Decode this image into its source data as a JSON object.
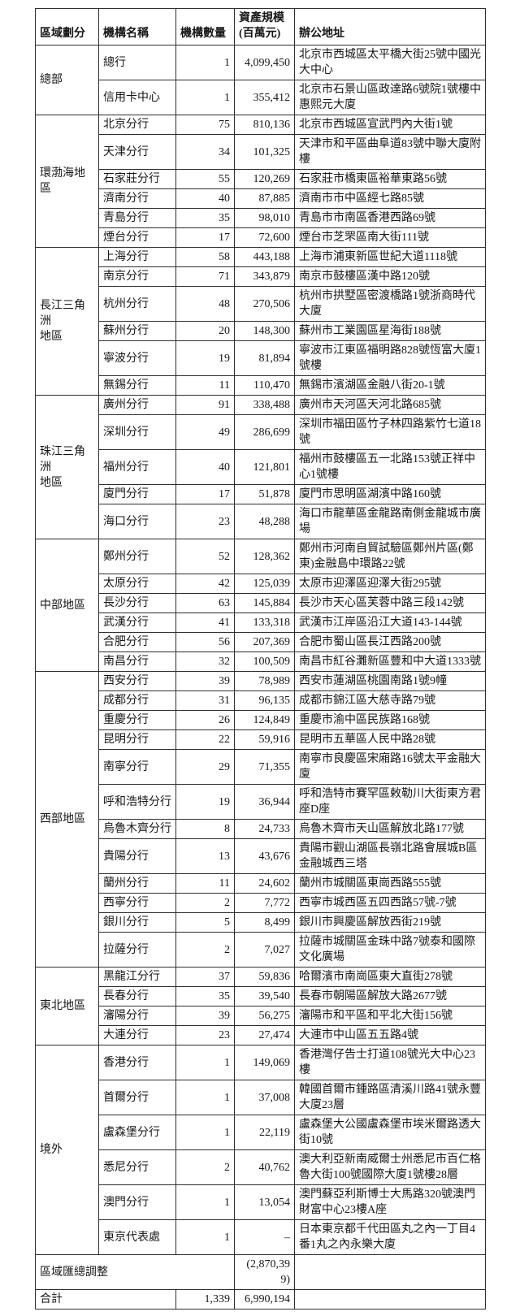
{
  "colors": {
    "background": "#ffffff",
    "text": "#161616",
    "border": "#2e2e2e"
  },
  "table": {
    "headers": {
      "region": "區域劃分",
      "name": "機構名稱",
      "count": "機構數量",
      "asset": "資產規模\n(百萬元)",
      "address": "辦公地址"
    },
    "groups": [
      {
        "region": "總部",
        "rows": [
          {
            "name": "總行",
            "count": "1",
            "asset": "4,099,450",
            "address": "北京市西城區太平橋大街25號中國光大中心"
          },
          {
            "name": "信用卡中心",
            "count": "1",
            "asset": "355,412",
            "address": "北京市石景山區政達路6號院1號樓中惠熙元大廈"
          }
        ]
      },
      {
        "region": "環渤海地區",
        "rows": [
          {
            "name": "北京分行",
            "count": "75",
            "asset": "810,136",
            "address": "北京市西城區宣武門內大街1號"
          },
          {
            "name": "天津分行",
            "count": "34",
            "asset": "101,325",
            "address": "天津市和平區曲阜道83號中聯大廈附樓"
          },
          {
            "name": "石家莊分行",
            "count": "55",
            "asset": "120,269",
            "address": "石家莊市橋東區裕華東路56號"
          },
          {
            "name": "濟南分行",
            "count": "40",
            "asset": "87,885",
            "address": "濟南市市中區經七路85號"
          },
          {
            "name": "青島分行",
            "count": "35",
            "asset": "98,010",
            "address": "青島市市南區香港西路69號"
          },
          {
            "name": "煙台分行",
            "count": "17",
            "asset": "72,600",
            "address": "煙台市芝罘區南大街111號"
          }
        ]
      },
      {
        "region": "長江三角洲\n地區",
        "rows": [
          {
            "name": "上海分行",
            "count": "58",
            "asset": "443,188",
            "address": "上海市浦東新區世紀大道1118號"
          },
          {
            "name": "南京分行",
            "count": "71",
            "asset": "343,879",
            "address": "南京市鼓樓區漢中路120號"
          },
          {
            "name": "杭州分行",
            "count": "48",
            "asset": "270,506",
            "address": "杭州市拱墅區密渡橋路1號浙商時代大廈"
          },
          {
            "name": "蘇州分行",
            "count": "20",
            "asset": "148,300",
            "address": "蘇州市工業園區星海街188號"
          },
          {
            "name": "寧波分行",
            "count": "19",
            "asset": "81,894",
            "address": "寧波市江東區福明路828號恆富大廈1號樓"
          },
          {
            "name": "無錫分行",
            "count": "11",
            "asset": "110,470",
            "address": "無錫市濱湖區金融八街20-1號"
          }
        ]
      },
      {
        "region": "珠江三角洲\n地區",
        "rows": [
          {
            "name": "廣州分行",
            "count": "91",
            "asset": "338,488",
            "address": "廣州市天河區天河北路685號"
          },
          {
            "name": "深圳分行",
            "count": "49",
            "asset": "286,699",
            "address": "深圳市福田區竹子林四路紫竹七道18號"
          },
          {
            "name": "福州分行",
            "count": "40",
            "asset": "121,801",
            "address": "福州市鼓樓區五一北路153號正祥中心1號樓"
          },
          {
            "name": "廈門分行",
            "count": "17",
            "asset": "51,878",
            "address": "廈門市思明區湖濱中路160號"
          },
          {
            "name": "海口分行",
            "count": "23",
            "asset": "48,288",
            "address": "海口市龍華區金龍路南側金龍城市廣場"
          }
        ]
      },
      {
        "region": "中部地區",
        "rows": [
          {
            "name": "鄭州分行",
            "count": "52",
            "asset": "128,362",
            "address": "鄭州市河南自貿試驗區鄭州片區(鄭東)金融島中環路22號"
          },
          {
            "name": "太原分行",
            "count": "42",
            "asset": "125,039",
            "address": "太原市迎澤區迎澤大街295號"
          },
          {
            "name": "長沙分行",
            "count": "63",
            "asset": "145,884",
            "address": "長沙市天心區芙蓉中路三段142號"
          },
          {
            "name": "武漢分行",
            "count": "41",
            "asset": "133,318",
            "address": "武漢市江岸區沿江大道143-144號"
          },
          {
            "name": "合肥分行",
            "count": "56",
            "asset": "207,369",
            "address": "合肥市蜀山區長江西路200號"
          },
          {
            "name": "南昌分行",
            "count": "32",
            "asset": "100,509",
            "address": "南昌市紅谷灘新區豐和中大道1333號"
          }
        ]
      },
      {
        "region": "西部地區",
        "rows": [
          {
            "name": "西安分行",
            "count": "39",
            "asset": "78,989",
            "address": "西安市蓮湖區桃園南路1號9幢"
          },
          {
            "name": "成都分行",
            "count": "31",
            "asset": "96,135",
            "address": "成都市錦江區大慈寺路79號"
          },
          {
            "name": "重慶分行",
            "count": "26",
            "asset": "124,849",
            "address": "重慶市渝中區民族路168號"
          },
          {
            "name": "昆明分行",
            "count": "22",
            "asset": "59,916",
            "address": "昆明市五華區人民中路28號"
          },
          {
            "name": "南寧分行",
            "count": "29",
            "asset": "71,355",
            "address": "南寧市良慶區宋廂路16號太平金融大廈"
          },
          {
            "name": "呼和浩特分行",
            "count": "19",
            "asset": "36,944",
            "address": "呼和浩特市賽罕區敕勒川大街東方君座D座"
          },
          {
            "name": "烏魯木齊分行",
            "count": "8",
            "asset": "24,733",
            "address": "烏魯木齊市天山區解放北路177號"
          },
          {
            "name": "貴陽分行",
            "count": "13",
            "asset": "43,676",
            "address": "貴陽市觀山湖區長嶺北路會展城B區金融城西三塔"
          },
          {
            "name": "蘭州分行",
            "count": "11",
            "asset": "24,602",
            "address": "蘭州市城關區東崗西路555號"
          },
          {
            "name": "西寧分行",
            "count": "2",
            "asset": "7,772",
            "address": "西寧市城西區五四西路57號-7號"
          },
          {
            "name": "銀川分行",
            "count": "5",
            "asset": "8,499",
            "address": "銀川市興慶區解放西街219號"
          },
          {
            "name": "拉薩分行",
            "count": "2",
            "asset": "7,027",
            "address": "拉薩市城關區金珠中路7號泰和國際文化廣場"
          }
        ]
      },
      {
        "region": "東北地區",
        "rows": [
          {
            "name": "黑龍江分行",
            "count": "37",
            "asset": "59,836",
            "address": "哈爾濱市南崗區東大直街278號"
          },
          {
            "name": "長春分行",
            "count": "35",
            "asset": "39,540",
            "address": "長春市朝陽區解放大路2677號"
          },
          {
            "name": "瀋陽分行",
            "count": "39",
            "asset": "56,275",
            "address": "瀋陽市和平區和平北大街156號"
          },
          {
            "name": "大連分行",
            "count": "23",
            "asset": "27,474",
            "address": "大連市中山區五五路4號"
          }
        ]
      },
      {
        "region": "境外",
        "rows": [
          {
            "name": "香港分行",
            "count": "1",
            "asset": "149,069",
            "address": "香港灣仔告士打道108號光大中心23樓"
          },
          {
            "name": "首爾分行",
            "count": "1",
            "asset": "37,008",
            "address": "韓國首爾市鍾路區清溪川路41號永豐大廈23層"
          },
          {
            "name": "盧森堡分行",
            "count": "1",
            "asset": "22,119",
            "address": "盧森堡大公國盧森堡市埃米爾路透大街10號"
          },
          {
            "name": "悉尼分行",
            "count": "2",
            "asset": "40,762",
            "address": "澳大利亞新南威爾士州悉尼市百仁格魯大街100號國際大廈1號樓28層"
          },
          {
            "name": "澳門分行",
            "count": "1",
            "asset": "13,054",
            "address": "澳門蘇亞利斯博士大馬路320號澳門財富中心23樓A座"
          },
          {
            "name": "東京代表處",
            "count": "1",
            "asset": "–",
            "address": "日本東京都千代田區丸之內一丁目4番1丸之內永樂大廈"
          }
        ]
      }
    ],
    "adjustment_row": {
      "label": "區域匯總調整",
      "asset": "(2,870,399)"
    },
    "total_row": {
      "label": "合計",
      "count": "1,339",
      "asset": "6,990,194"
    }
  }
}
